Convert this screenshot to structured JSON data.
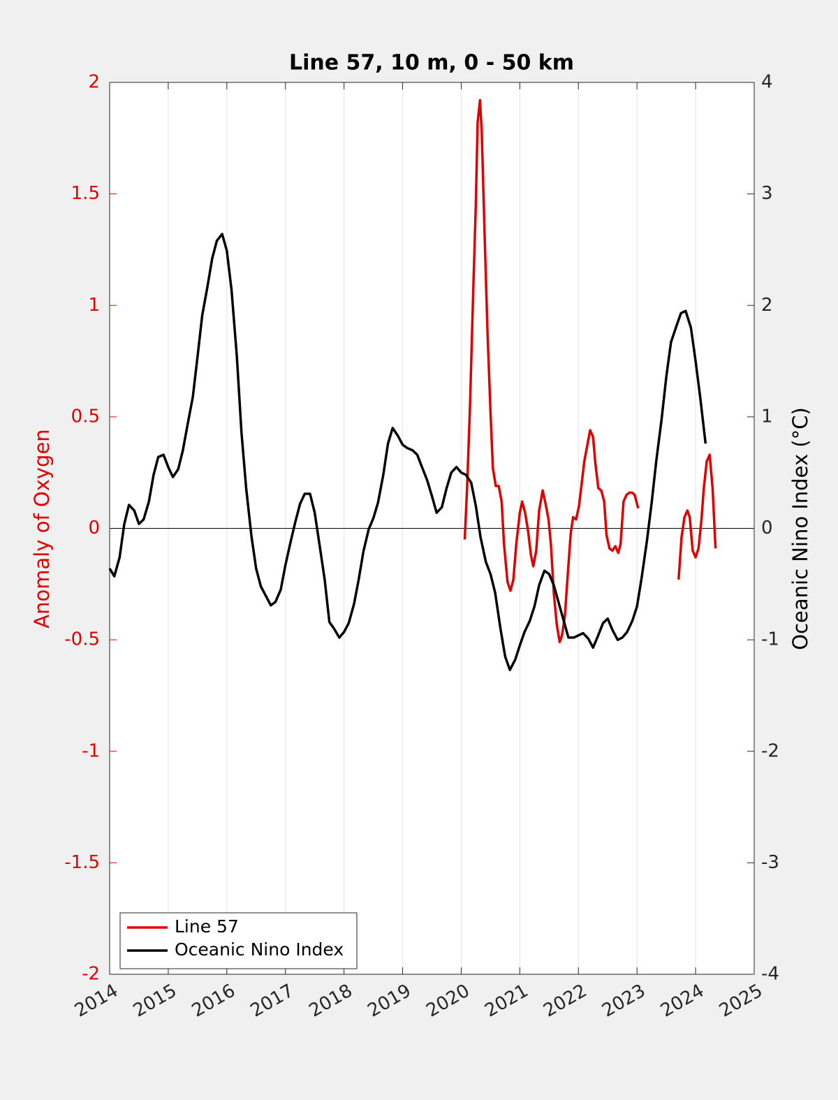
{
  "chart_data": {
    "type": "line",
    "title": "Line 57, 10 m, 0 - 50 km",
    "ylabel": "Anomaly of Oxygen",
    "y2label": "Oceanic Nino Index (°C)",
    "xlim": [
      2014,
      2025
    ],
    "xticks": [
      2014,
      2015,
      2016,
      2017,
      2018,
      2019,
      2020,
      2021,
      2022,
      2023,
      2024,
      2025
    ],
    "ylim": [
      -2,
      2
    ],
    "yticks": [
      -2,
      -1.5,
      -1,
      -0.5,
      0,
      0.5,
      1,
      1.5,
      2
    ],
    "y2lim": [
      -4,
      4
    ],
    "y2ticks": [
      -4,
      -3,
      -2,
      -1,
      0,
      1,
      2,
      3,
      4
    ],
    "grid": "x",
    "legend": "lower left",
    "series": [
      {
        "name": "Line 57",
        "color": "#e00000",
        "axis": "y",
        "x": [
          2020.06,
          2020.1,
          2020.15,
          2020.2,
          2020.25,
          2020.28,
          2020.32,
          2020.35,
          2020.4,
          2020.45,
          2020.5,
          2020.54,
          2020.59,
          2020.64,
          2020.69,
          2020.73,
          2020.79,
          2020.84,
          2020.89,
          2020.94,
          2021.0,
          2021.04,
          2021.09,
          2021.14,
          2021.19,
          2021.23,
          2021.28,
          2021.33,
          2021.39,
          2021.44,
          2021.49,
          2021.53,
          2021.58,
          2021.63,
          2021.68,
          2021.72,
          2021.77,
          2021.82,
          2021.87,
          2021.91,
          2021.96,
          2022.01,
          2022.06,
          2022.1,
          2022.15,
          2022.2,
          2022.25,
          2022.29,
          2022.34,
          2022.39,
          2022.44,
          2022.48,
          2022.53,
          2022.58,
          2022.63,
          2022.68,
          2022.72,
          2022.77,
          2022.82,
          2022.87,
          2022.92,
          2022.96,
          2023.02,
          2023.35,
          2023.71,
          2023.76,
          2023.81,
          2023.86,
          2023.9,
          2023.95,
          2024.0,
          2024.05,
          2024.1,
          2024.14,
          2024.19,
          2024.24,
          2024.29,
          2024.34
        ],
        "values": [
          -0.05,
          0.18,
          0.55,
          1.02,
          1.46,
          1.82,
          1.92,
          1.78,
          1.31,
          0.87,
          0.52,
          0.27,
          0.19,
          0.19,
          0.12,
          -0.07,
          -0.24,
          -0.28,
          -0.23,
          -0.07,
          0.07,
          0.12,
          0.07,
          -0.01,
          -0.12,
          -0.17,
          -0.1,
          0.08,
          0.17,
          0.11,
          0.04,
          -0.07,
          -0.29,
          -0.43,
          -0.51,
          -0.48,
          -0.39,
          -0.2,
          -0.02,
          0.05,
          0.04,
          0.1,
          0.21,
          0.3,
          0.37,
          0.44,
          0.41,
          0.29,
          0.18,
          0.17,
          0.12,
          -0.03,
          -0.09,
          -0.1,
          -0.08,
          -0.11,
          -0.07,
          0.12,
          0.15,
          0.16,
          0.16,
          0.15,
          0.09,
          null,
          -0.23,
          -0.04,
          0.05,
          0.08,
          0.05,
          -0.1,
          -0.13,
          -0.09,
          0.04,
          0.18,
          0.3,
          0.33,
          0.18,
          -0.09
        ]
      },
      {
        "name": "Oceanic Nino Index",
        "color": "#000000",
        "axis": "y2",
        "x": [
          2014.0,
          2014.08,
          2014.17,
          2014.25,
          2014.33,
          2014.42,
          2014.5,
          2014.58,
          2014.67,
          2014.75,
          2014.83,
          2014.92,
          2015.0,
          2015.08,
          2015.17,
          2015.25,
          2015.33,
          2015.42,
          2015.5,
          2015.58,
          2015.67,
          2015.75,
          2015.83,
          2015.92,
          2016.0,
          2016.08,
          2016.17,
          2016.25,
          2016.33,
          2016.42,
          2016.5,
          2016.58,
          2016.67,
          2016.75,
          2016.83,
          2016.92,
          2017.0,
          2017.08,
          2017.17,
          2017.25,
          2017.33,
          2017.42,
          2017.5,
          2017.58,
          2017.67,
          2017.75,
          2017.83,
          2017.92,
          2018.0,
          2018.08,
          2018.17,
          2018.25,
          2018.33,
          2018.42,
          2018.5,
          2018.58,
          2018.67,
          2018.75,
          2018.83,
          2018.92,
          2019.0,
          2019.08,
          2019.17,
          2019.25,
          2019.33,
          2019.42,
          2019.5,
          2019.58,
          2019.67,
          2019.75,
          2019.83,
          2019.92,
          2020.0,
          2020.08,
          2020.17,
          2020.25,
          2020.33,
          2020.42,
          2020.5,
          2020.58,
          2020.67,
          2020.75,
          2020.83,
          2020.92,
          2021.0,
          2021.08,
          2021.17,
          2021.25,
          2021.33,
          2021.42,
          2021.5,
          2021.58,
          2021.67,
          2021.75,
          2021.83,
          2021.92,
          2022.0,
          2022.08,
          2022.17,
          2022.25,
          2022.33,
          2022.42,
          2022.5,
          2022.58,
          2022.67,
          2022.75,
          2022.83,
          2022.92,
          2023.0,
          2023.08,
          2023.17,
          2023.25,
          2023.33,
          2023.42,
          2023.5,
          2023.58,
          2023.67,
          2023.75,
          2023.83,
          2023.92,
          2024.0,
          2024.08,
          2024.17
        ],
        "values": [
          -0.36,
          -0.43,
          -0.26,
          0.04,
          0.21,
          0.16,
          0.04,
          0.08,
          0.24,
          0.48,
          0.64,
          0.66,
          0.55,
          0.46,
          0.53,
          0.7,
          0.93,
          1.18,
          1.54,
          1.91,
          2.17,
          2.42,
          2.58,
          2.64,
          2.49,
          2.14,
          1.55,
          0.86,
          0.36,
          -0.07,
          -0.36,
          -0.52,
          -0.61,
          -0.69,
          -0.66,
          -0.55,
          -0.33,
          -0.14,
          0.06,
          0.22,
          0.31,
          0.31,
          0.14,
          -0.14,
          -0.46,
          -0.84,
          -0.9,
          -0.98,
          -0.93,
          -0.85,
          -0.68,
          -0.46,
          -0.21,
          -0.01,
          0.09,
          0.23,
          0.48,
          0.76,
          0.9,
          0.83,
          0.75,
          0.72,
          0.7,
          0.66,
          0.55,
          0.43,
          0.29,
          0.14,
          0.19,
          0.36,
          0.5,
          0.55,
          0.5,
          0.48,
          0.41,
          0.2,
          -0.08,
          -0.3,
          -0.41,
          -0.58,
          -0.9,
          -1.15,
          -1.27,
          -1.18,
          -1.05,
          -0.93,
          -0.83,
          -0.7,
          -0.51,
          -0.38,
          -0.41,
          -0.51,
          -0.68,
          -0.83,
          -0.98,
          -0.98,
          -0.96,
          -0.94,
          -0.99,
          -1.07,
          -0.97,
          -0.85,
          -0.81,
          -0.91,
          -1.0,
          -0.98,
          -0.93,
          -0.83,
          -0.7,
          -0.44,
          -0.11,
          0.23,
          0.61,
          0.98,
          1.36,
          1.67,
          1.81,
          1.93,
          1.95,
          1.8,
          1.5,
          1.17,
          0.76
        ]
      }
    ]
  }
}
